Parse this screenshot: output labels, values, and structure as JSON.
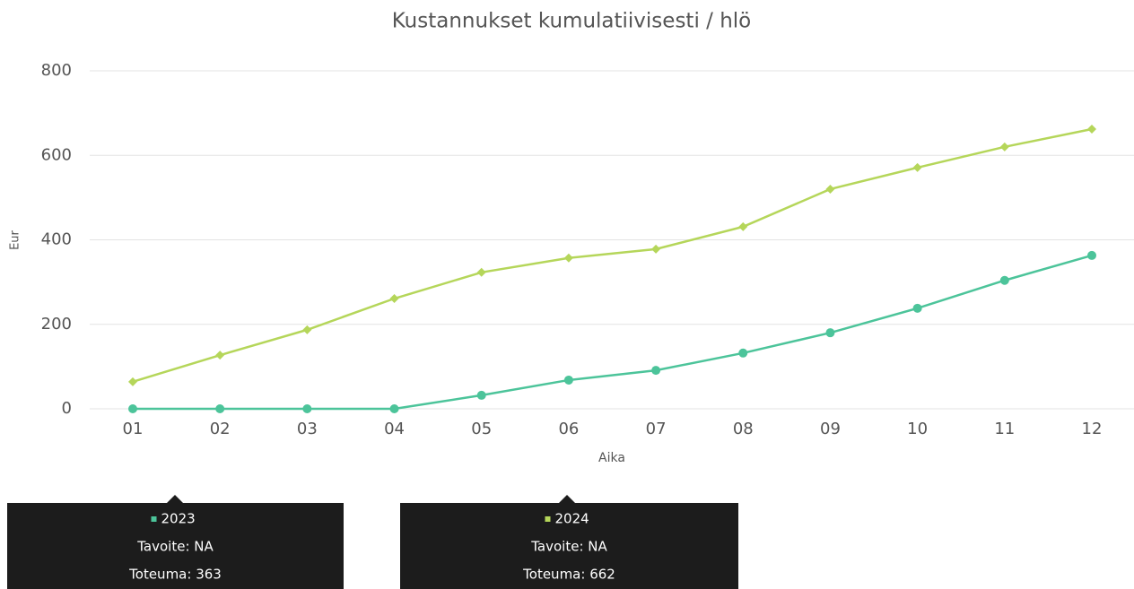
{
  "chart_data": {
    "type": "line",
    "title": "Kustannukset kumulatiivisesti / hlö",
    "x_label": "Aika",
    "y_label": "Eur",
    "categories": [
      "01",
      "02",
      "03",
      "04",
      "05",
      "06",
      "07",
      "08",
      "09",
      "10",
      "11",
      "12"
    ],
    "series": [
      {
        "name": "2023",
        "color": "#4cc49a",
        "marker": "circle",
        "values": [
          0,
          0,
          0,
          0,
          32,
          68,
          91,
          132,
          180,
          238,
          304,
          363
        ]
      },
      {
        "name": "2024",
        "color": "#b5d65a",
        "marker": "diamond",
        "values": [
          64,
          127,
          187,
          261,
          323,
          357,
          378,
          431,
          520,
          571,
          620,
          662
        ]
      }
    ],
    "ylim": [
      0,
      800
    ],
    "yticks": [
      0,
      200,
      400,
      600,
      800
    ],
    "grid": true,
    "tooltips": [
      {
        "lines": [
          "Tavoite: NA",
          "Toteuma: 363"
        ]
      },
      {
        "lines": [
          "Tavoite: NA",
          "Toteuma: 662"
        ]
      }
    ]
  }
}
